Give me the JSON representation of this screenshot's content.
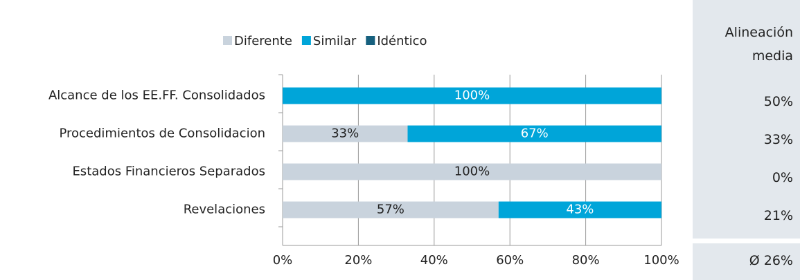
{
  "chart_data": {
    "type": "stacked_barh",
    "categories": [
      "Alcance de los EE.FF. Consolidados",
      "Procedimientos de Consolidacion",
      "Estados Financieros Separados",
      "Revelaciones"
    ],
    "series": [
      {
        "name": "Diferente",
        "color": "#c9d3dd",
        "label_color": "#222222",
        "values": [
          0,
          33,
          100,
          57
        ],
        "value_labels": [
          null,
          "33%",
          "100%",
          "57%"
        ]
      },
      {
        "name": "Similar",
        "color": "#00a5d9",
        "label_color": "#ffffff",
        "values": [
          100,
          67,
          0,
          43
        ],
        "value_labels": [
          "100%",
          "67%",
          null,
          "43%"
        ]
      },
      {
        "name": "Idéntico",
        "color": "#16607e",
        "label_color": "#ffffff",
        "values": [
          0,
          0,
          0,
          0
        ],
        "value_labels": [
          null,
          null,
          null,
          null
        ]
      }
    ],
    "xlim": [
      0,
      100
    ],
    "xticks": [
      {
        "value": 0,
        "label": "0%"
      },
      {
        "value": 20,
        "label": "20%"
      },
      {
        "value": 40,
        "label": "40%"
      },
      {
        "value": 60,
        "label": "60%"
      },
      {
        "value": 80,
        "label": "80%"
      },
      {
        "value": 100,
        "label": "100%"
      }
    ],
    "grid": true,
    "legend": "top"
  },
  "side_panel": {
    "title": "Alineación media",
    "values": [
      50,
      33,
      0,
      21
    ],
    "value_labels": [
      "50%",
      "33%",
      "0%",
      "21%"
    ],
    "average": 26,
    "average_label": "Ø 26%"
  }
}
